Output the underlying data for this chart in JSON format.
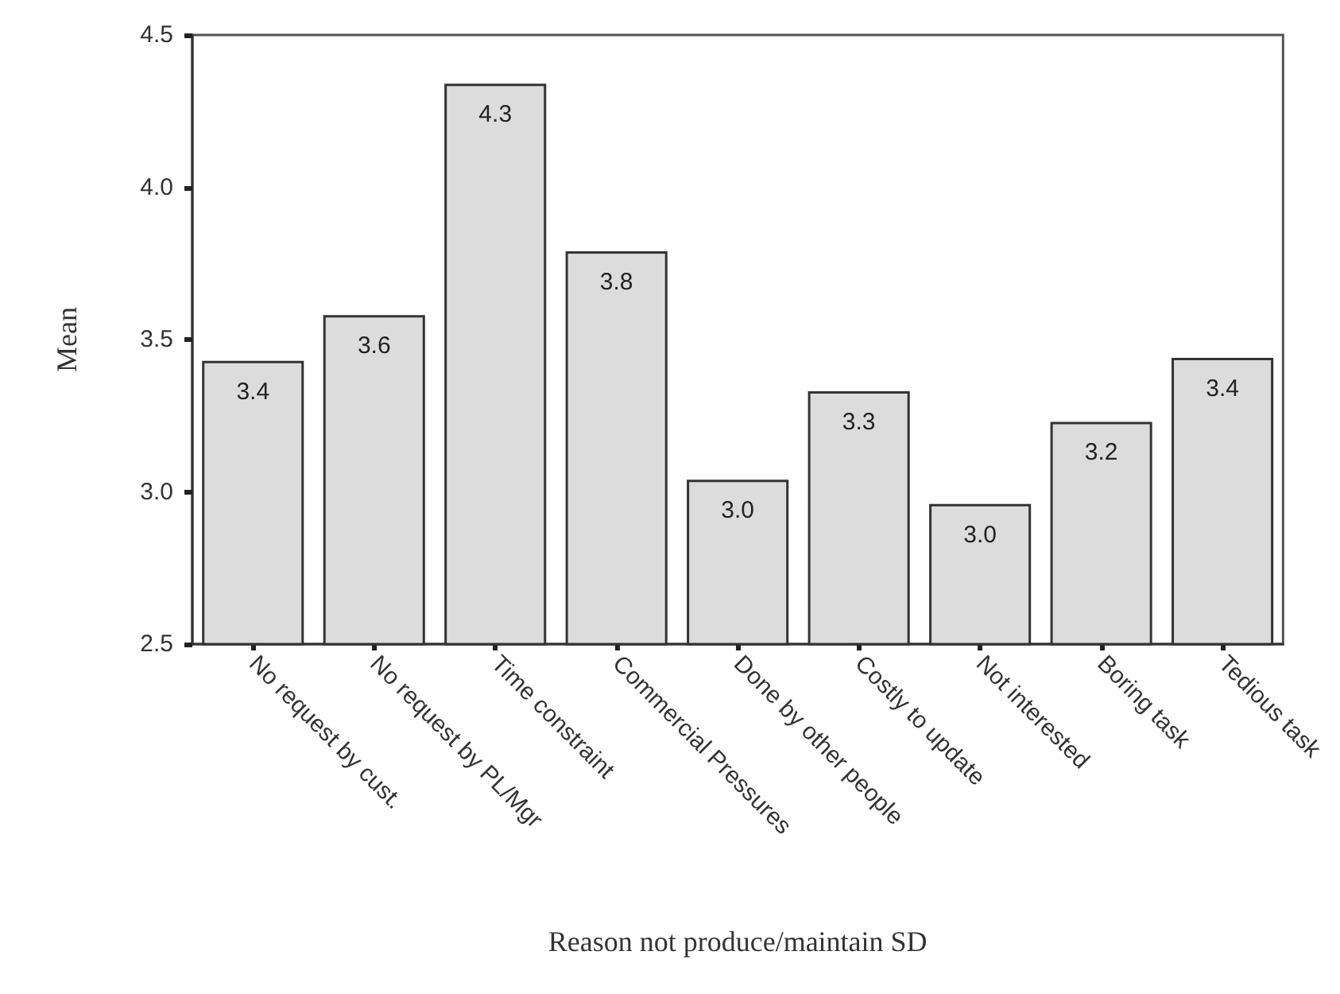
{
  "chart_data": {
    "type": "bar",
    "xlabel": "Reason not produce/maintain SD",
    "ylabel": "Mean",
    "categories": [
      "No request by cust.",
      "No request by PL/Mgr",
      "Time constraint",
      "Commercial Pressures",
      "Done by other people",
      "Costly to update",
      "Not interested",
      "Boring task",
      "Tedious task"
    ],
    "values": [
      3.43,
      3.58,
      4.34,
      3.79,
      3.04,
      3.33,
      2.96,
      3.23,
      3.44
    ],
    "value_labels": [
      "3.4",
      "3.6",
      "4.3",
      "3.8",
      "3.0",
      "3.3",
      "3.0",
      "3.2",
      "3.4"
    ],
    "color": "#dcdcdc",
    "ylim": [
      2.5,
      4.5
    ],
    "yticks": [
      2.5,
      {
        "value": 3,
        "label": "3.0"
      },
      3.5,
      {
        "value": 4,
        "label": "4.0"
      },
      4.5
    ],
    "grid": false
  }
}
